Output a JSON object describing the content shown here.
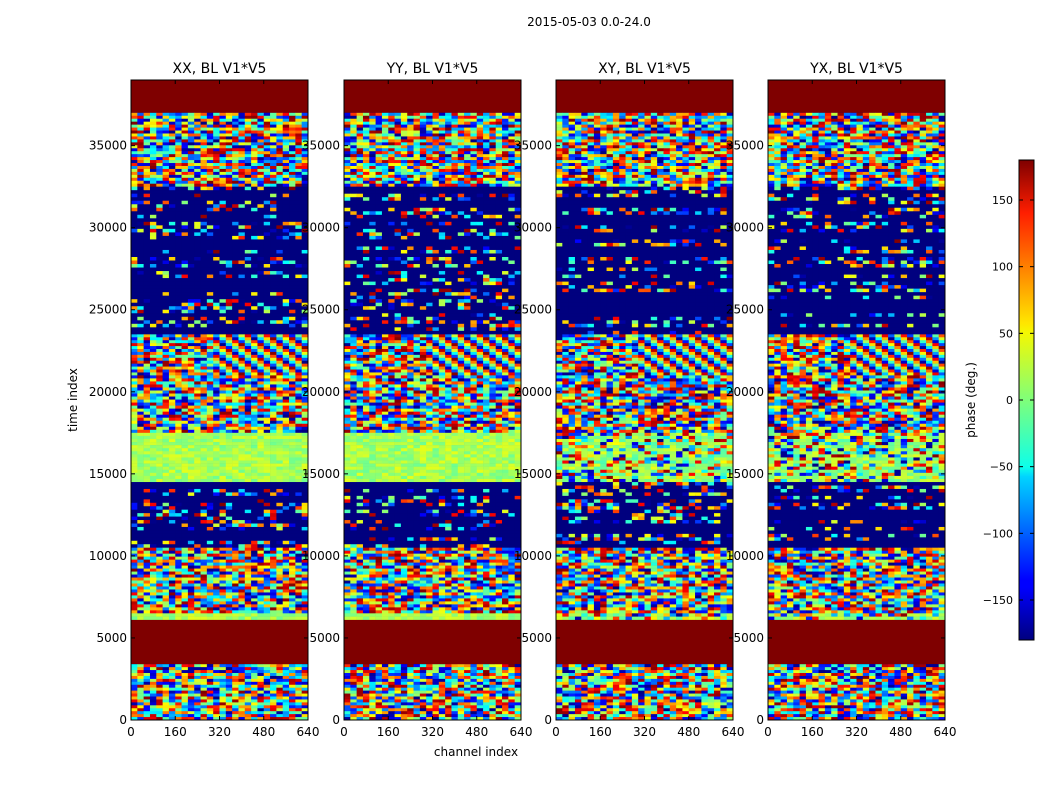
{
  "figure": {
    "suptitle": "2015-05-03 0.0-24.0"
  },
  "chart_data": {
    "type": "heatmap",
    "panels": [
      {
        "title": "XX, BL V1*V5",
        "variant": 0
      },
      {
        "title": "YY, BL V1*V5",
        "variant": 1
      },
      {
        "title": "XY, BL V1*V5",
        "variant": 2
      },
      {
        "title": "YX, BL V1*V5",
        "variant": 3
      }
    ],
    "xlabel": "channel index",
    "ylabel": "time index",
    "xlim": [
      0,
      640
    ],
    "ylim": [
      0,
      39000
    ],
    "x_ticks": [
      0,
      160,
      320,
      480,
      640
    ],
    "y_ticks": [
      0,
      5000,
      10000,
      15000,
      20000,
      25000,
      30000,
      35000
    ],
    "colorbar": {
      "label": "phase (deg.)",
      "range": [
        -180,
        180
      ],
      "ticks": [
        150,
        100,
        50,
        0,
        -50,
        -100,
        -150
      ],
      "tick_labels": [
        "150",
        "100",
        "50",
        "0",
        "−50",
        "−100",
        "−150"
      ],
      "colormap": "jet"
    },
    "bands": [
      {
        "y0": 37000,
        "y1": 39000,
        "kind": "flag"
      },
      {
        "y0": 32500,
        "y1": 37000,
        "kind": "noise"
      },
      {
        "y0": 23500,
        "y1": 32500,
        "kind": "stripes"
      },
      {
        "y0": 21000,
        "y1": 23500,
        "kind": "fringe"
      },
      {
        "y0": 17500,
        "y1": 21000,
        "kind": "noise"
      },
      {
        "y0": 14500,
        "y1": 17500,
        "kind": "band"
      },
      {
        "y0": 10500,
        "y1": 14500,
        "kind": "stripes"
      },
      {
        "y0": 6500,
        "y1": 10500,
        "kind": "noise"
      },
      {
        "y0": 6100,
        "y1": 6500,
        "kind": "band"
      },
      {
        "y0": 3400,
        "y1": 6100,
        "kind": "flag"
      },
      {
        "y0": 0,
        "y1": 3400,
        "kind": "noise"
      }
    ]
  }
}
